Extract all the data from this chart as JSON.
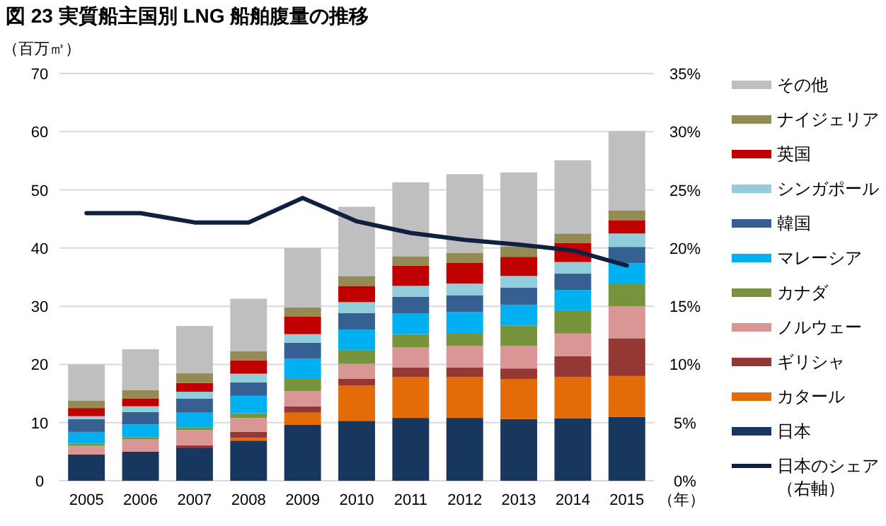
{
  "chart_data": {
    "type": "bar",
    "stacked": true,
    "title": "図 23 実質船主国別 LNG 船舶腹量の推移",
    "ylabel": "（百万㎥）",
    "xlabel": "（年）",
    "categories": [
      "2005",
      "2006",
      "2007",
      "2008",
      "2009",
      "2010",
      "2011",
      "2012",
      "2013",
      "2014",
      "2015"
    ],
    "ylim": [
      0,
      70
    ],
    "yticks": [
      0,
      10,
      20,
      30,
      40,
      50,
      60,
      70
    ],
    "y2lim": [
      0,
      35
    ],
    "y2ticks": [
      {
        "value": 0,
        "label": "0%"
      },
      {
        "value": 5,
        "label": "5%"
      },
      {
        "value": 10,
        "label": "10%"
      },
      {
        "value": 15,
        "label": "15%"
      },
      {
        "value": 20,
        "label": "20%"
      },
      {
        "value": 25,
        "label": "25%"
      },
      {
        "value": 30,
        "label": "30%"
      },
      {
        "value": 35,
        "label": "35%"
      }
    ],
    "grid": "y",
    "legend": "right",
    "series": [
      {
        "name": "日本",
        "color": "#17375e",
        "values": [
          4.5,
          5.0,
          5.7,
          6.9,
          9.6,
          10.3,
          10.8,
          10.8,
          10.6,
          10.7,
          11.0
        ]
      },
      {
        "name": "カタール",
        "color": "#e36c09",
        "values": [
          0,
          0,
          0,
          0.5,
          2.1,
          6.1,
          7.0,
          7.0,
          6.9,
          7.1,
          7.0
        ]
      },
      {
        "name": "ギリシャ",
        "color": "#953735",
        "values": [
          0,
          0,
          0.4,
          1.0,
          1.1,
          1.1,
          1.7,
          1.7,
          1.8,
          3.6,
          6.5
        ]
      },
      {
        "name": "ノルウェー",
        "color": "#da9694",
        "values": [
          1.5,
          2.1,
          2.6,
          2.4,
          2.6,
          2.6,
          3.4,
          3.7,
          3.9,
          3.9,
          5.5
        ]
      },
      {
        "name": "カナダ",
        "color": "#77933c",
        "values": [
          0.4,
          0.4,
          0.5,
          0.8,
          2.1,
          2.4,
          2.3,
          2.2,
          3.5,
          4.0,
          3.9
        ]
      },
      {
        "name": "マレーシア",
        "color": "#00b0f0",
        "values": [
          2.0,
          2.2,
          2.5,
          3.0,
          3.5,
          3.5,
          3.6,
          3.6,
          3.5,
          3.5,
          3.5
        ]
      },
      {
        "name": "韓国",
        "color": "#366092",
        "values": [
          2.2,
          2.1,
          2.4,
          2.3,
          2.7,
          2.8,
          2.8,
          2.9,
          3.0,
          2.8,
          2.8
        ]
      },
      {
        "name": "シンガポール",
        "color": "#92cddc",
        "values": [
          0.5,
          1.0,
          1.2,
          1.5,
          1.5,
          1.9,
          1.9,
          2.0,
          2.0,
          2.0,
          2.3
        ]
      },
      {
        "name": "英国",
        "color": "#c00000",
        "values": [
          1.4,
          1.3,
          1.5,
          2.3,
          3.0,
          2.8,
          3.5,
          3.6,
          3.3,
          3.3,
          2.3
        ]
      },
      {
        "name": "ナイジェリア",
        "color": "#948a54",
        "values": [
          1.3,
          1.5,
          1.7,
          1.6,
          1.6,
          1.7,
          1.6,
          1.7,
          1.8,
          1.6,
          1.7
        ]
      },
      {
        "name": "その他",
        "color": "#bfbfbf",
        "values": [
          6.2,
          7.0,
          8.1,
          9.0,
          10.2,
          11.9,
          12.7,
          13.5,
          12.7,
          12.6,
          13.6
        ]
      },
      {
        "name": "日本のシェア（右軸）",
        "type": "line",
        "axis": "y2",
        "color": "#0f2040",
        "values": [
          23.0,
          23.0,
          22.2,
          22.2,
          24.3,
          22.3,
          21.3,
          20.7,
          20.3,
          19.8,
          18.5
        ]
      }
    ]
  }
}
